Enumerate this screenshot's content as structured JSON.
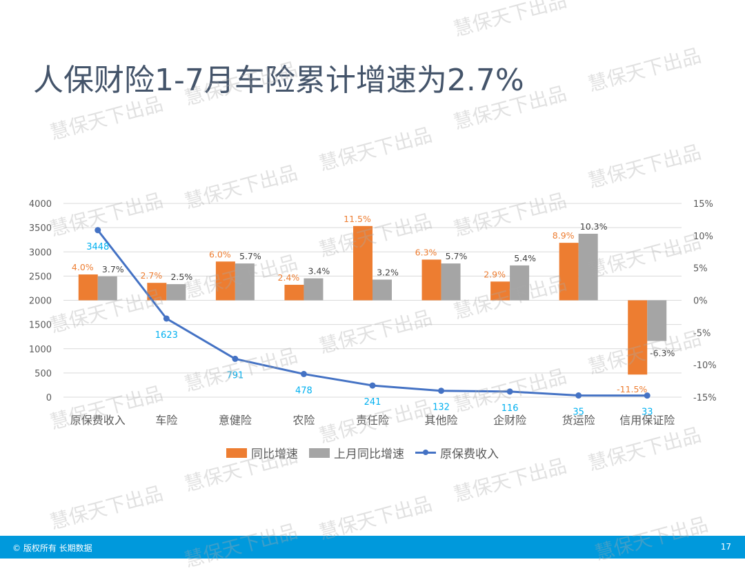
{
  "title": "人保财险1-7月车险累计增速为2.7%",
  "watermark_text": "慧保天下出品",
  "footer": {
    "left": "© 版权所有 长期数据",
    "page_number": "17"
  },
  "colors": {
    "yoy_growth": "#ed7d31",
    "prev_month_yoy_growth": "#a5a5a5",
    "premium_line": "#4472c4",
    "premium_label": "#00b0f0",
    "title": "#44546a",
    "footer_bg": "#0099dc"
  },
  "legend": {
    "yoy_growth": "同比增速",
    "prev_month_yoy_growth": "上月同比增速",
    "premium": "原保费收入"
  },
  "chart_data": {
    "type": "bar",
    "title": "",
    "categories": [
      "原保费收入",
      "车险",
      "意健险",
      "农险",
      "责任险",
      "其他险",
      "企财险",
      "货运险",
      "信用保证险"
    ],
    "series": [
      {
        "name": "同比增速",
        "type": "bar",
        "axis": "right",
        "values": [
          4.0,
          2.7,
          6.0,
          2.4,
          11.5,
          6.3,
          2.9,
          8.9,
          -11.5
        ],
        "labels": [
          "4.0%",
          "2.7%",
          "6.0%",
          "2.4%",
          "11.5%",
          "6.3%",
          "2.9%",
          "8.9%",
          "-11.5%"
        ]
      },
      {
        "name": "上月同比增速",
        "type": "bar",
        "axis": "right",
        "values": [
          3.7,
          2.5,
          5.7,
          3.4,
          3.2,
          5.7,
          5.4,
          10.3,
          -6.3
        ],
        "labels": [
          "3.7%",
          "2.5%",
          "5.7%",
          "3.4%",
          "3.2%",
          "5.7%",
          "5.4%",
          "10.3%",
          "-6.3%"
        ]
      },
      {
        "name": "原保费收入",
        "type": "line",
        "axis": "left",
        "values": [
          3448,
          1623,
          791,
          478,
          241,
          132,
          116,
          35,
          33
        ],
        "labels": [
          "3448",
          "1623",
          "791",
          "478",
          "241",
          "132",
          "116",
          "35",
          "33"
        ]
      }
    ],
    "left_axis": {
      "ylim": [
        0,
        4000
      ],
      "ticks": [
        "4000",
        "3500",
        "3000",
        "2500",
        "2000",
        "1500",
        "1000",
        "500",
        "0"
      ]
    },
    "right_axis": {
      "ylim": [
        -15,
        15
      ],
      "ticks": [
        "15%",
        "10%",
        "5%",
        "0%",
        "-5%",
        "-10%",
        "-15%"
      ]
    },
    "xlabel": "",
    "ylabel": "",
    "grid": true,
    "legend_position": "bottom"
  }
}
